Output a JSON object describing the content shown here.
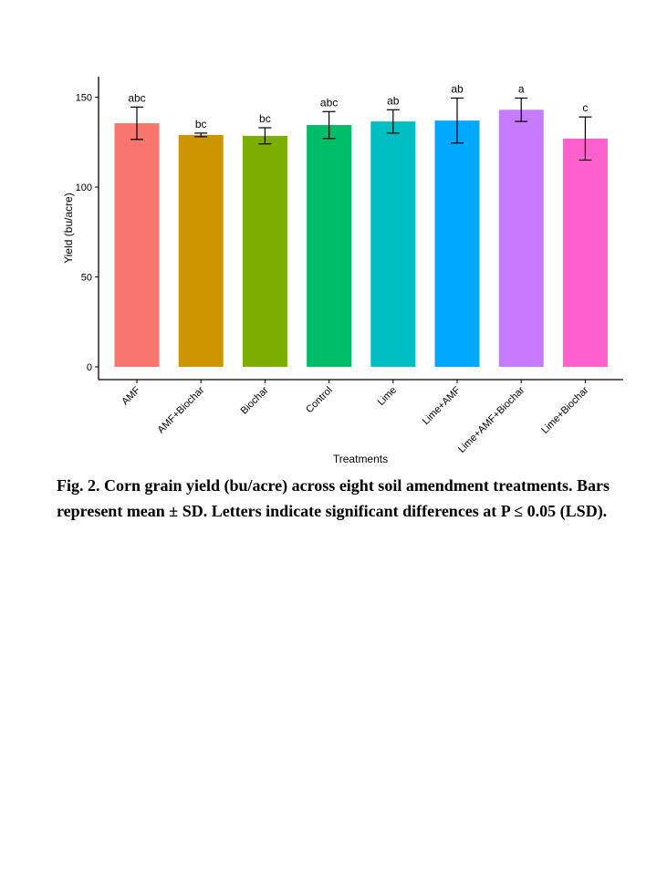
{
  "chart_data": {
    "type": "bar",
    "title": "",
    "xlabel": "Treatments",
    "ylabel": "Yield (bu/acre)",
    "ylim": [
      0,
      160
    ],
    "yticks": [
      0,
      50,
      100,
      150
    ],
    "categories": [
      "AMF",
      "AMF+Biochar",
      "Biochar",
      "Control",
      "Lime",
      "Lime+AMF",
      "Lime+AMF+Biochar",
      "Lime+Biochar"
    ],
    "values": [
      135.5,
      129,
      128.5,
      134.5,
      136.5,
      137,
      143,
      127
    ],
    "errors": [
      9,
      1,
      4.5,
      7.5,
      6.5,
      12.5,
      6.5,
      12
    ],
    "letters": [
      "abc",
      "bc",
      "bc",
      "abc",
      "ab",
      "ab",
      "a",
      "c"
    ],
    "colors": [
      "#F8766D",
      "#CD9600",
      "#7CAE00",
      "#00BE67",
      "#00BFC4",
      "#00A9FF",
      "#C77CFF",
      "#FF61CC"
    ],
    "grid": false,
    "legend": "none"
  },
  "caption": "Fig. 2. Corn grain yield (bu/acre) across eight soil amendment treatments. Bars represent mean ± SD. Letters indicate significant differences at P ≤ 0.05 (LSD)."
}
